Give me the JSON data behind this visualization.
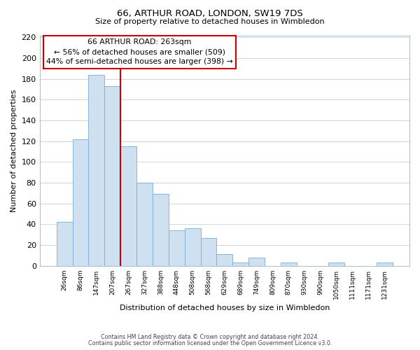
{
  "title": "66, ARTHUR ROAD, LONDON, SW19 7DS",
  "subtitle": "Size of property relative to detached houses in Wimbledon",
  "xlabel": "Distribution of detached houses by size in Wimbledon",
  "ylabel": "Number of detached properties",
  "bar_color": "#cfe0f0",
  "bar_edge_color": "#7aadd4",
  "categories": [
    "26sqm",
    "86sqm",
    "147sqm",
    "207sqm",
    "267sqm",
    "327sqm",
    "388sqm",
    "448sqm",
    "508sqm",
    "568sqm",
    "629sqm",
    "689sqm",
    "749sqm",
    "809sqm",
    "870sqm",
    "930sqm",
    "990sqm",
    "1050sqm",
    "1111sqm",
    "1171sqm",
    "1231sqm"
  ],
  "values": [
    42,
    122,
    184,
    173,
    115,
    80,
    69,
    34,
    36,
    27,
    11,
    3,
    8,
    0,
    3,
    0,
    0,
    3,
    0,
    0,
    3
  ],
  "vline_color": "#cc0000",
  "annotation_title": "66 ARTHUR ROAD: 263sqm",
  "annotation_line1": "← 56% of detached houses are smaller (509)",
  "annotation_line2": "44% of semi-detached houses are larger (398) →",
  "annotation_box_color": "#ffffff",
  "annotation_box_edge_color": "#cc0000",
  "ylim": [
    0,
    222
  ],
  "yticks": [
    0,
    20,
    40,
    60,
    80,
    100,
    120,
    140,
    160,
    180,
    200,
    220
  ],
  "footer1": "Contains HM Land Registry data © Crown copyright and database right 2024.",
  "footer2": "Contains public sector information licensed under the Open Government Licence v3.0.",
  "background_color": "#ffffff",
  "grid_color": "#c8d8e8"
}
